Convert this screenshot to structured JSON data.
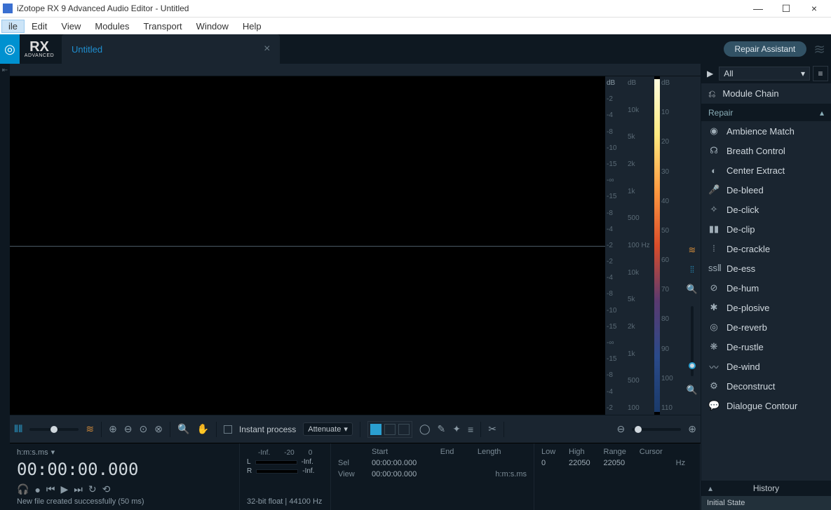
{
  "window": {
    "title": "iZotope RX 9 Advanced Audio Editor - Untitled"
  },
  "menubar": [
    "ile",
    "Edit",
    "View",
    "Modules",
    "Transport",
    "Window",
    "Help"
  ],
  "topbar": {
    "logo_big": "RX",
    "logo_small": "ADVANCED",
    "tab_title": "Untitled",
    "repair_assistant": "Repair Assistant"
  },
  "db_scale_left": [
    "dB",
    "-2",
    "-4",
    "-8",
    "-10",
    "-15",
    "-∞",
    "-15",
    "-8",
    "-4",
    "-2",
    "-2",
    "-4",
    "-8",
    "-10",
    "-15",
    "-∞",
    "-15",
    "-8",
    "-4",
    "-2"
  ],
  "freq_scale": [
    "dB",
    "10k",
    "5k",
    "2k",
    "1k",
    "500",
    "100 Hz",
    "10k",
    "5k",
    "2k",
    "1k",
    "500",
    "100"
  ],
  "spectro_scale": [
    "dB",
    "10",
    "20",
    "30",
    "40",
    "50",
    "60",
    "70",
    "80",
    "90",
    "100",
    "110"
  ],
  "toolbar": {
    "instant_process": "Instant process",
    "mode": "Attenuate"
  },
  "status": {
    "time_format": "h:m:s.ms",
    "time": "00:00:00.000",
    "meter_labels": [
      "-Inf.",
      "-20",
      "0"
    ],
    "L": "L",
    "R": "R",
    "neg_inf": "-Inf.",
    "sel_label": "Sel",
    "view_label": "View",
    "start_label": "Start",
    "end_label": "End",
    "length_label": "Length",
    "sel_start": "00:00:00.000",
    "view_start": "00:00:00.000",
    "time_unit": "h:m:s.ms",
    "low_label": "Low",
    "high_label": "High",
    "range_label": "Range",
    "cursor_label": "Cursor",
    "low": "0",
    "high": "22050",
    "range": "22050",
    "hz": "Hz",
    "format": "32-bit float | 44100 Hz",
    "footer": "New file created successfully (50 ms)"
  },
  "right_panel": {
    "filter": "All",
    "module_chain": "Module Chain",
    "category": "Repair",
    "modules": [
      "Ambience Match",
      "Breath Control",
      "Center Extract",
      "De-bleed",
      "De-click",
      "De-clip",
      "De-crackle",
      "De-ess",
      "De-hum",
      "De-plosive",
      "De-reverb",
      "De-rustle",
      "De-wind",
      "Deconstruct",
      "Dialogue Contour"
    ],
    "history_title": "History",
    "history_item": "Initial State"
  },
  "icons": {
    "close": "×",
    "min": "—",
    "max": "☐",
    "play": "▶",
    "chevron_down": "▾",
    "chevron_up": "▴",
    "burger": "≡"
  }
}
